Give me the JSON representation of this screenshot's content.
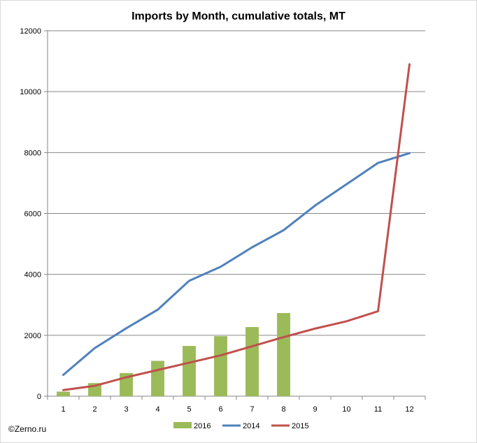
{
  "chart_data": {
    "type": "bar",
    "title": "Imports by Month, cumulative totals, MT",
    "xlabel": "",
    "ylabel": "",
    "categories": [
      "1",
      "2",
      "3",
      "4",
      "5",
      "6",
      "7",
      "8",
      "9",
      "10",
      "11",
      "12"
    ],
    "ylim": [
      0,
      12000
    ],
    "yticks": [
      "0",
      "2000",
      "4000",
      "6000",
      "8000",
      "10000",
      "12000"
    ],
    "grid": true,
    "legend_position": "bottom",
    "series": [
      {
        "name": "2016",
        "kind": "bar",
        "color": "#9bbb59",
        "values": [
          150,
          430,
          760,
          1160,
          1650,
          1970,
          2270,
          2730,
          null,
          null,
          null,
          null
        ]
      },
      {
        "name": "2014",
        "kind": "line",
        "color": "#4f81bd",
        "values": [
          700,
          1580,
          2230,
          2840,
          3790,
          4250,
          4890,
          5450,
          6260,
          6960,
          7660,
          7980
        ]
      },
      {
        "name": "2015",
        "kind": "line",
        "color": "#c0504d",
        "values": [
          200,
          340,
          620,
          860,
          1100,
          1340,
          1640,
          1940,
          2220,
          2460,
          2790,
          10900
        ]
      }
    ]
  },
  "footer": {
    "copyright": "©Zerno.ru"
  }
}
